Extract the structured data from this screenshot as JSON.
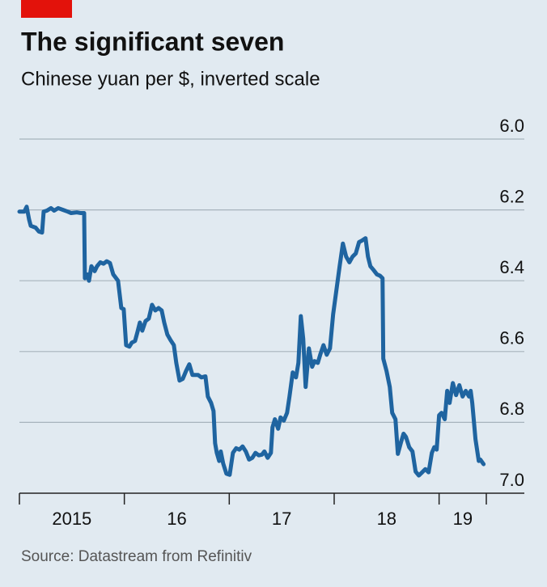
{
  "chart_data": {
    "type": "line",
    "title": "The significant seven",
    "subtitle": "Chinese yuan per $, inverted scale",
    "source": "Source: Datastream from Refinitiv",
    "color": "#1f64a0",
    "inverted": true,
    "ylim": [
      6.0,
      7.0
    ],
    "yticks": [
      {
        "value": 6.0,
        "label": "6.0"
      },
      6.2,
      6.4,
      6.6,
      6.8,
      {
        "value": 7.0,
        "label": "7.0"
      }
    ],
    "xlim": [
      2015,
      2019.45
    ],
    "xticks": [
      {
        "value": 2015,
        "label": "2015"
      },
      {
        "value": 2016,
        "label": "16"
      },
      {
        "value": 2017,
        "label": "17"
      },
      {
        "value": 2018,
        "label": "18"
      },
      {
        "value": 2019,
        "label": "19"
      }
    ],
    "grid": true,
    "x": [
      2015.0,
      2015.046,
      2015.069,
      2015.092,
      2015.108,
      2015.154,
      2015.185,
      2015.216,
      2015.231,
      2015.262,
      2015.301,
      2015.331,
      2015.37,
      2015.416,
      2015.462,
      2015.493,
      2015.547,
      2015.586,
      2015.617,
      2015.624,
      2015.647,
      2015.663,
      2015.686,
      2015.717,
      2015.74,
      2015.771,
      2015.802,
      2015.832,
      2015.863,
      2015.894,
      2015.94,
      2015.971,
      2015.994,
      2016.017,
      2016.048,
      2016.071,
      2016.102,
      2016.125,
      2016.148,
      2016.171,
      2016.202,
      2016.233,
      2016.264,
      2016.295,
      2016.326,
      2016.356,
      2016.38,
      2016.41,
      2016.441,
      2016.472,
      2016.495,
      2016.526,
      2016.557,
      2016.588,
      2016.619,
      2016.649,
      2016.672,
      2016.703,
      2016.734,
      2016.773,
      2016.796,
      2016.827,
      2016.85,
      2016.865,
      2016.881,
      2016.904,
      2016.919,
      2016.942,
      2016.973,
      2017.004,
      2017.035,
      2017.066,
      2017.096,
      2017.127,
      2017.158,
      2017.189,
      2017.22,
      2017.25,
      2017.281,
      2017.312,
      2017.335,
      2017.366,
      2017.397,
      2017.412,
      2017.435,
      2017.466,
      2017.489,
      2017.52,
      2017.551,
      2017.574,
      2017.605,
      2017.636,
      2017.659,
      2017.682,
      2017.705,
      2017.728,
      2017.759,
      2017.79,
      2017.813,
      2017.844,
      2017.867,
      2017.898,
      2017.929,
      2017.96,
      2017.99,
      2018.021,
      2018.052,
      2018.083,
      2018.114,
      2018.145,
      2018.175,
      2018.206,
      2018.237,
      2018.268,
      2018.299,
      2018.322,
      2018.345,
      2018.376,
      2018.407,
      2018.437,
      2018.461,
      2018.468,
      2018.499,
      2018.53,
      2018.553,
      2018.584,
      2018.607,
      2018.638,
      2018.661,
      2018.684,
      2018.715,
      2018.746,
      2018.776,
      2018.807,
      2018.838,
      2018.869,
      2018.9,
      2018.931,
      2018.954,
      2018.977,
      2019.0,
      2019.023,
      2019.054,
      2019.077,
      2019.1,
      2019.131,
      2019.162,
      2019.193,
      2019.224,
      2019.254,
      2019.285,
      2019.301,
      2019.316,
      2019.347,
      2019.378,
      2019.393,
      2019.424
    ],
    "values": [
      6.205,
      6.205,
      6.191,
      6.227,
      6.245,
      6.25,
      6.261,
      6.264,
      6.205,
      6.202,
      6.195,
      6.202,
      6.195,
      6.2,
      6.205,
      6.209,
      6.207,
      6.209,
      6.209,
      6.393,
      6.382,
      6.4,
      6.359,
      6.373,
      6.359,
      6.348,
      6.352,
      6.345,
      6.35,
      6.382,
      6.4,
      6.477,
      6.48,
      6.582,
      6.586,
      6.575,
      6.57,
      6.545,
      6.518,
      6.541,
      6.514,
      6.507,
      6.468,
      6.484,
      6.477,
      6.484,
      6.518,
      6.552,
      6.568,
      6.582,
      6.632,
      6.682,
      6.677,
      6.655,
      6.636,
      6.666,
      6.666,
      6.666,
      6.673,
      6.67,
      6.727,
      6.745,
      6.768,
      6.859,
      6.886,
      6.909,
      6.882,
      6.916,
      6.945,
      6.948,
      6.886,
      6.873,
      6.877,
      6.868,
      6.882,
      6.905,
      6.9,
      6.886,
      6.893,
      6.891,
      6.882,
      6.9,
      6.886,
      6.814,
      6.791,
      6.818,
      6.786,
      6.795,
      6.773,
      6.727,
      6.659,
      6.673,
      6.632,
      6.5,
      6.564,
      6.7,
      6.591,
      6.643,
      6.627,
      6.632,
      6.609,
      6.582,
      6.609,
      6.591,
      6.495,
      6.427,
      6.359,
      6.295,
      6.332,
      6.348,
      6.332,
      6.323,
      6.291,
      6.286,
      6.28,
      6.332,
      6.359,
      6.37,
      6.382,
      6.386,
      6.393,
      6.62,
      6.655,
      6.7,
      6.773,
      6.791,
      6.889,
      6.855,
      6.832,
      6.841,
      6.87,
      6.882,
      6.939,
      6.95,
      6.941,
      6.932,
      6.941,
      6.886,
      6.87,
      6.877,
      6.78,
      6.773,
      6.791,
      6.711,
      6.745,
      6.689,
      6.723,
      6.695,
      6.727,
      6.711,
      6.727,
      6.711,
      6.745,
      6.848,
      6.909,
      6.905,
      6.918
    ]
  }
}
